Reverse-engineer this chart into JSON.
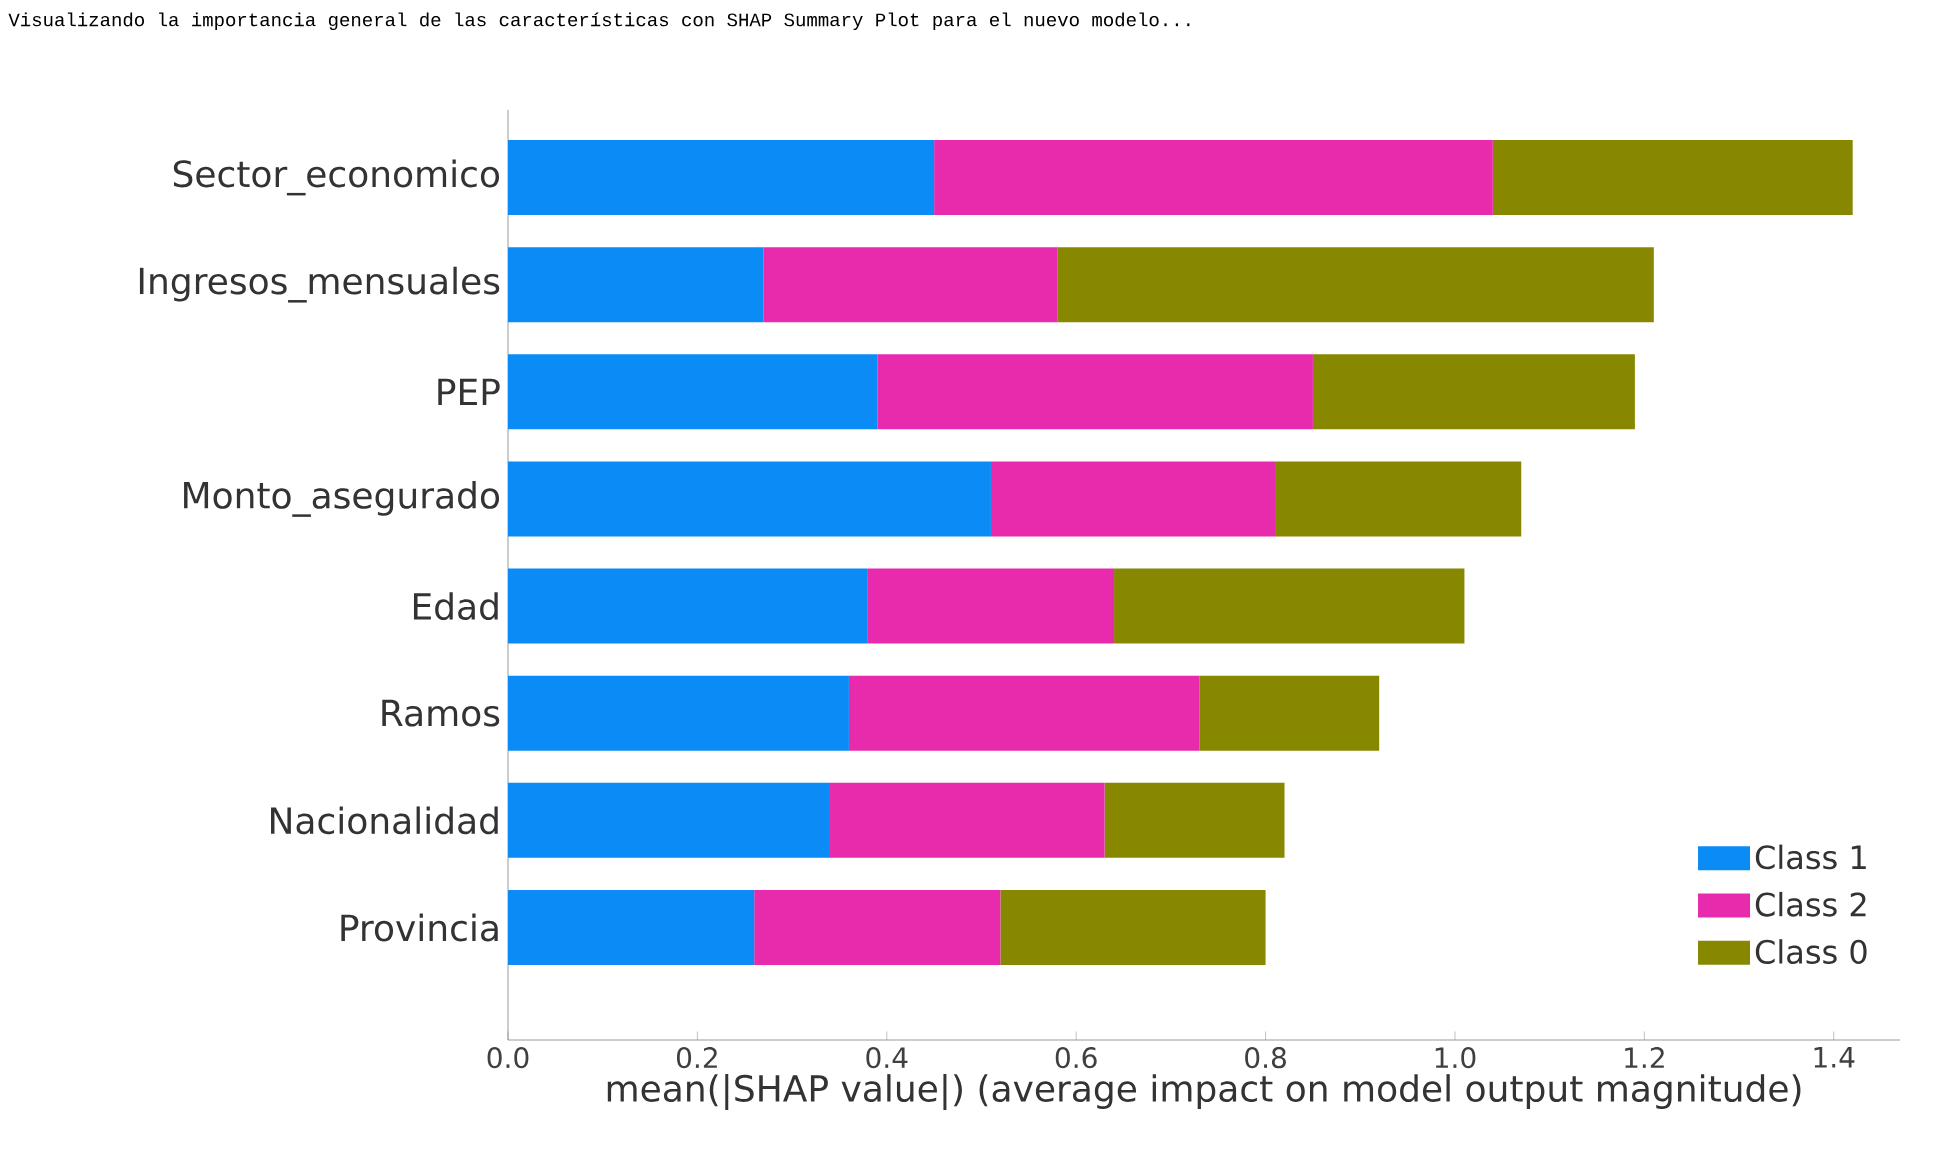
{
  "chart_data": {
    "type": "bar",
    "orientation": "horizontal",
    "stacked": true,
    "title": "Visualizando la importancia general de las características con SHAP Summary Plot para el nuevo modelo...",
    "xlabel": "mean(|SHAP value|) (average impact on model output magnitude)",
    "categories": [
      "Sector_economico",
      "Ingresos_mensuales",
      "PEP",
      "Monto_asegurado",
      "Edad",
      "Ramos",
      "Nacionalidad",
      "Provincia"
    ],
    "series": [
      {
        "name": "Class 1",
        "color": "#0a8bf5",
        "values": [
          0.45,
          0.27,
          0.39,
          0.51,
          0.38,
          0.36,
          0.34,
          0.26
        ]
      },
      {
        "name": "Class 2",
        "color": "#e82aac",
        "values": [
          0.59,
          0.31,
          0.46,
          0.3,
          0.26,
          0.37,
          0.29,
          0.26
        ]
      },
      {
        "name": "Class 0",
        "color": "#878800",
        "values": [
          0.38,
          0.63,
          0.34,
          0.26,
          0.37,
          0.19,
          0.19,
          0.28
        ]
      }
    ],
    "xlim": [
      0,
      1.47
    ],
    "xticks": [
      {
        "value": 0,
        "label": "0.0"
      },
      {
        "value": 0.2,
        "label": "0.2"
      },
      {
        "value": 0.4,
        "label": "0.4"
      },
      {
        "value": 0.6,
        "label": "0.6"
      },
      {
        "value": 0.8,
        "label": "0.8"
      },
      {
        "value": 1.0,
        "label": "1.0"
      },
      {
        "value": 1.2,
        "label": "1.2"
      },
      {
        "value": 1.4,
        "label": "1.4"
      }
    ],
    "legend": "bottom right",
    "grid": false
  }
}
